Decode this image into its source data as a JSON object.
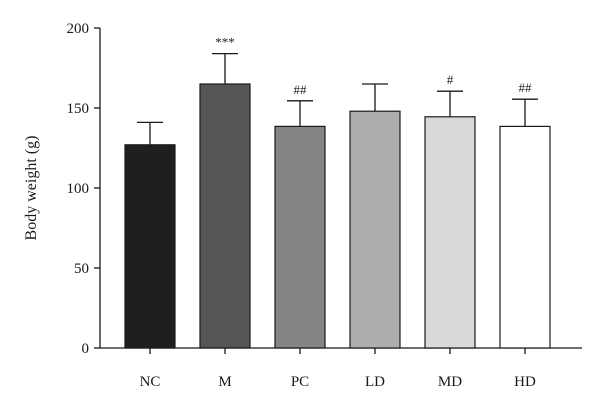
{
  "chart_data": {
    "type": "bar",
    "title": "",
    "xlabel": "",
    "ylabel": "Body weight (g)",
    "ylim": [
      0,
      200
    ],
    "yticks": [
      0,
      50,
      100,
      150,
      200
    ],
    "grid": false,
    "categories": [
      "NC",
      "M",
      "PC",
      "LD",
      "MD",
      "HD"
    ],
    "values": [
      127,
      165,
      138.5,
      148,
      144.5,
      138.5
    ],
    "error": [
      14,
      19,
      16,
      17,
      16,
      17
    ],
    "annotations": [
      "",
      "***",
      "##",
      "",
      "#",
      "##"
    ],
    "colors": [
      "#1f1f1f",
      "#555555",
      "#858585",
      "#adadad",
      "#d9d9d9",
      "#ffffff"
    ]
  }
}
